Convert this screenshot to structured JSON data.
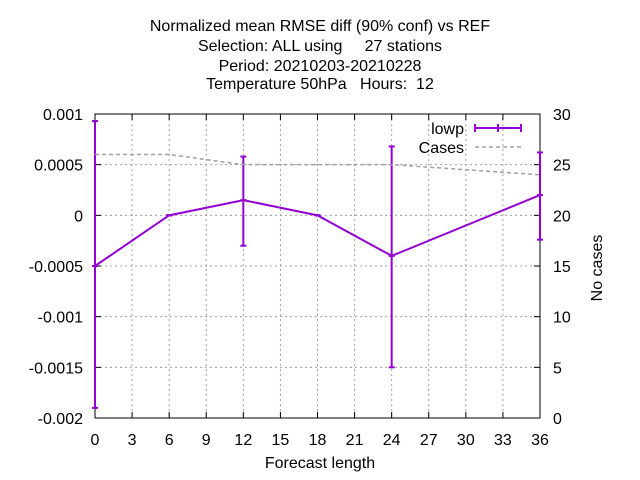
{
  "chart_data": {
    "type": "line",
    "title_lines": [
      "Normalized mean RMSE diff (90% conf) vs REF",
      "Selection: ALL using     27 stations",
      "Period: 20210203-20210228",
      "Temperature 50hPa   Hours:  12"
    ],
    "xlabel": "Forecast length",
    "ylabel": "",
    "y2label": "No cases",
    "xlim": [
      0,
      36
    ],
    "ylim": [
      -0.002,
      0.001
    ],
    "y2lim": [
      0,
      30
    ],
    "xticks": [
      "0",
      "3",
      "6",
      "9",
      "12",
      "15",
      "18",
      "21",
      "24",
      "27",
      "30",
      "33",
      "36"
    ],
    "yticks": [
      "0.001",
      "0.0005",
      "0",
      "-0.0005",
      "-0.001",
      "-0.0015",
      "-0.002"
    ],
    "y2ticks": [
      "30",
      "25",
      "20",
      "15",
      "10",
      "5",
      "0"
    ],
    "grid": true,
    "legend_position": "top-right",
    "series": [
      {
        "name": "lowp",
        "color": "#9400d3",
        "axis": "y",
        "x": [
          0,
          6,
          12,
          18,
          24,
          36
        ],
        "y": [
          -0.0005,
          0.0,
          0.00015,
          0.0,
          -0.0004,
          0.0002
        ],
        "err_low": [
          -0.0019,
          0.0,
          -0.0003,
          0.0,
          -0.0015,
          -0.00024
        ],
        "err_high": [
          0.00093,
          0.0,
          0.00058,
          0.0,
          0.00068,
          0.00062
        ]
      },
      {
        "name": "Cases",
        "color": "#a0a0a0",
        "axis": "y2",
        "dashed": true,
        "x": [
          0,
          6,
          12,
          18,
          24,
          30,
          36
        ],
        "y": [
          26,
          26,
          25,
          25,
          25,
          24.5,
          24
        ]
      }
    ]
  }
}
